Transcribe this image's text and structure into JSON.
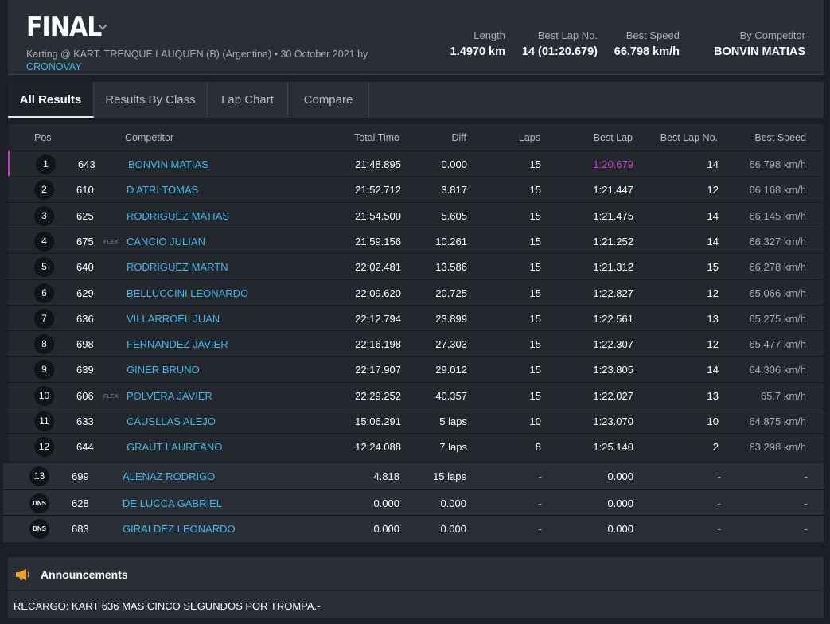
{
  "header": {
    "title": "FINAL",
    "subtitle": "Karting @ KART. TRENQUE LAUQUEN (B) (Argentina) • 30 October 2021 by",
    "subtitle_link": "CRONOVAY",
    "stats": [
      {
        "label": "Length",
        "value": "1.4970 km"
      },
      {
        "label": "Best Lap No.",
        "value": "14 (01:20.679)"
      },
      {
        "label": "Best Speed",
        "value": "66.798 km/h"
      },
      {
        "label": "By Competitor",
        "value": "BONVIN MATIAS"
      }
    ]
  },
  "tabs": [
    {
      "label": "All Results",
      "active": true
    },
    {
      "label": "Results By Class",
      "active": false
    },
    {
      "label": "Lap Chart",
      "active": false
    },
    {
      "label": "Compare",
      "active": false
    }
  ],
  "table": {
    "headers": {
      "pos": "Pos",
      "competitor": "Competitor",
      "total_time": "Total Time",
      "diff": "Diff",
      "laps": "Laps",
      "best_lap": "Best Lap",
      "best_lap_no": "Best Lap No.",
      "best_speed": "Best Speed"
    },
    "rows": [
      {
        "pos": "1",
        "num": "643",
        "class": "",
        "name": "BONVIN MATIAS",
        "total": "21:48.895",
        "diff": "0.000",
        "laps": "15",
        "best": "1:20.679",
        "best_no": "14",
        "speed": "66.798 km/h"
      },
      {
        "pos": "2",
        "num": "610",
        "class": "",
        "name": "D ATRI TOMAS",
        "total": "21:52.712",
        "diff": "3.817",
        "laps": "15",
        "best": "1:21.447",
        "best_no": "12",
        "speed": "66.168 km/h"
      },
      {
        "pos": "3",
        "num": "625",
        "class": "",
        "name": "RODRIGUEZ MATIAS",
        "total": "21:54.500",
        "diff": "5.605",
        "laps": "15",
        "best": "1:21.475",
        "best_no": "14",
        "speed": "66.145 km/h"
      },
      {
        "pos": "4",
        "num": "675",
        "class": "FLEX",
        "name": "CANCIO JULIAN",
        "total": "21:59.156",
        "diff": "10.261",
        "laps": "15",
        "best": "1:21.252",
        "best_no": "14",
        "speed": "66.327 km/h"
      },
      {
        "pos": "5",
        "num": "640",
        "class": "",
        "name": "RODRIGUEZ MARTN",
        "total": "22:02.481",
        "diff": "13.586",
        "laps": "15",
        "best": "1:21.312",
        "best_no": "15",
        "speed": "66.278 km/h"
      },
      {
        "pos": "6",
        "num": "629",
        "class": "",
        "name": "BELLUCCINI LEONARDO",
        "total": "22:09.620",
        "diff": "20.725",
        "laps": "15",
        "best": "1:22.827",
        "best_no": "12",
        "speed": "65.066 km/h"
      },
      {
        "pos": "7",
        "num": "636",
        "class": "",
        "name": "VILLARROEL JUAN",
        "total": "22:12.794",
        "diff": "23.899",
        "laps": "15",
        "best": "1:22.561",
        "best_no": "13",
        "speed": "65.275 km/h"
      },
      {
        "pos": "8",
        "num": "698",
        "class": "",
        "name": "FERNANDEZ JAVIER",
        "total": "22:16.198",
        "diff": "27.303",
        "laps": "15",
        "best": "1:22.307",
        "best_no": "12",
        "speed": "65.477 km/h"
      },
      {
        "pos": "9",
        "num": "639",
        "class": "",
        "name": "GINER BRUNO",
        "total": "22:17.907",
        "diff": "29.012",
        "laps": "15",
        "best": "1:23.805",
        "best_no": "14",
        "speed": "64.306 km/h"
      },
      {
        "pos": "10",
        "num": "606",
        "class": "FLEX",
        "name": "POLVERA JAVIER",
        "total": "22:29.252",
        "diff": "40.357",
        "laps": "15",
        "best": "1:22.027",
        "best_no": "13",
        "speed": "65.7 km/h"
      },
      {
        "pos": "11",
        "num": "633",
        "class": "",
        "name": "CAUSLLAS ALEJO",
        "total": "15:06.291",
        "diff": "5 laps",
        "laps": "10",
        "best": "1:23.070",
        "best_no": "10",
        "speed": "64.875 km/h"
      },
      {
        "pos": "12",
        "num": "644",
        "class": "",
        "name": "GRAUT LAUREANO",
        "total": "12:24.088",
        "diff": "7 laps",
        "laps": "8",
        "best": "1:25.140",
        "best_no": "2",
        "speed": "63.298 km/h"
      }
    ],
    "unclassified": [
      {
        "pos": "13",
        "num": "699",
        "name": "ALENAZ RODRIGO",
        "total": "4.818",
        "diff": "15 laps",
        "laps": "-",
        "best": "0.000",
        "best_no": "-",
        "speed": "-"
      },
      {
        "pos": "DNS",
        "num": "628",
        "name": "DE LUCCA GABRIEL",
        "total": "0.000",
        "diff": "0.000",
        "laps": "-",
        "best": "0.000",
        "best_no": "-",
        "speed": "-"
      },
      {
        "pos": "DNS",
        "num": "683",
        "name": "GIRALDEZ LEONARDO",
        "total": "0.000",
        "diff": "0.000",
        "laps": "-",
        "best": "0.000",
        "best_no": "-",
        "speed": "-"
      }
    ]
  },
  "announcements": {
    "title": "Announcements",
    "icon": "megaphone-icon",
    "text": "RECARGO: KART 636 MAS CINCO SEGUNDOS POR TROMPA.-"
  },
  "colors": {
    "accent_link": "#3fb7e8",
    "best_lap_highlight": "#c83bc8",
    "megaphone": "#f0a020"
  }
}
